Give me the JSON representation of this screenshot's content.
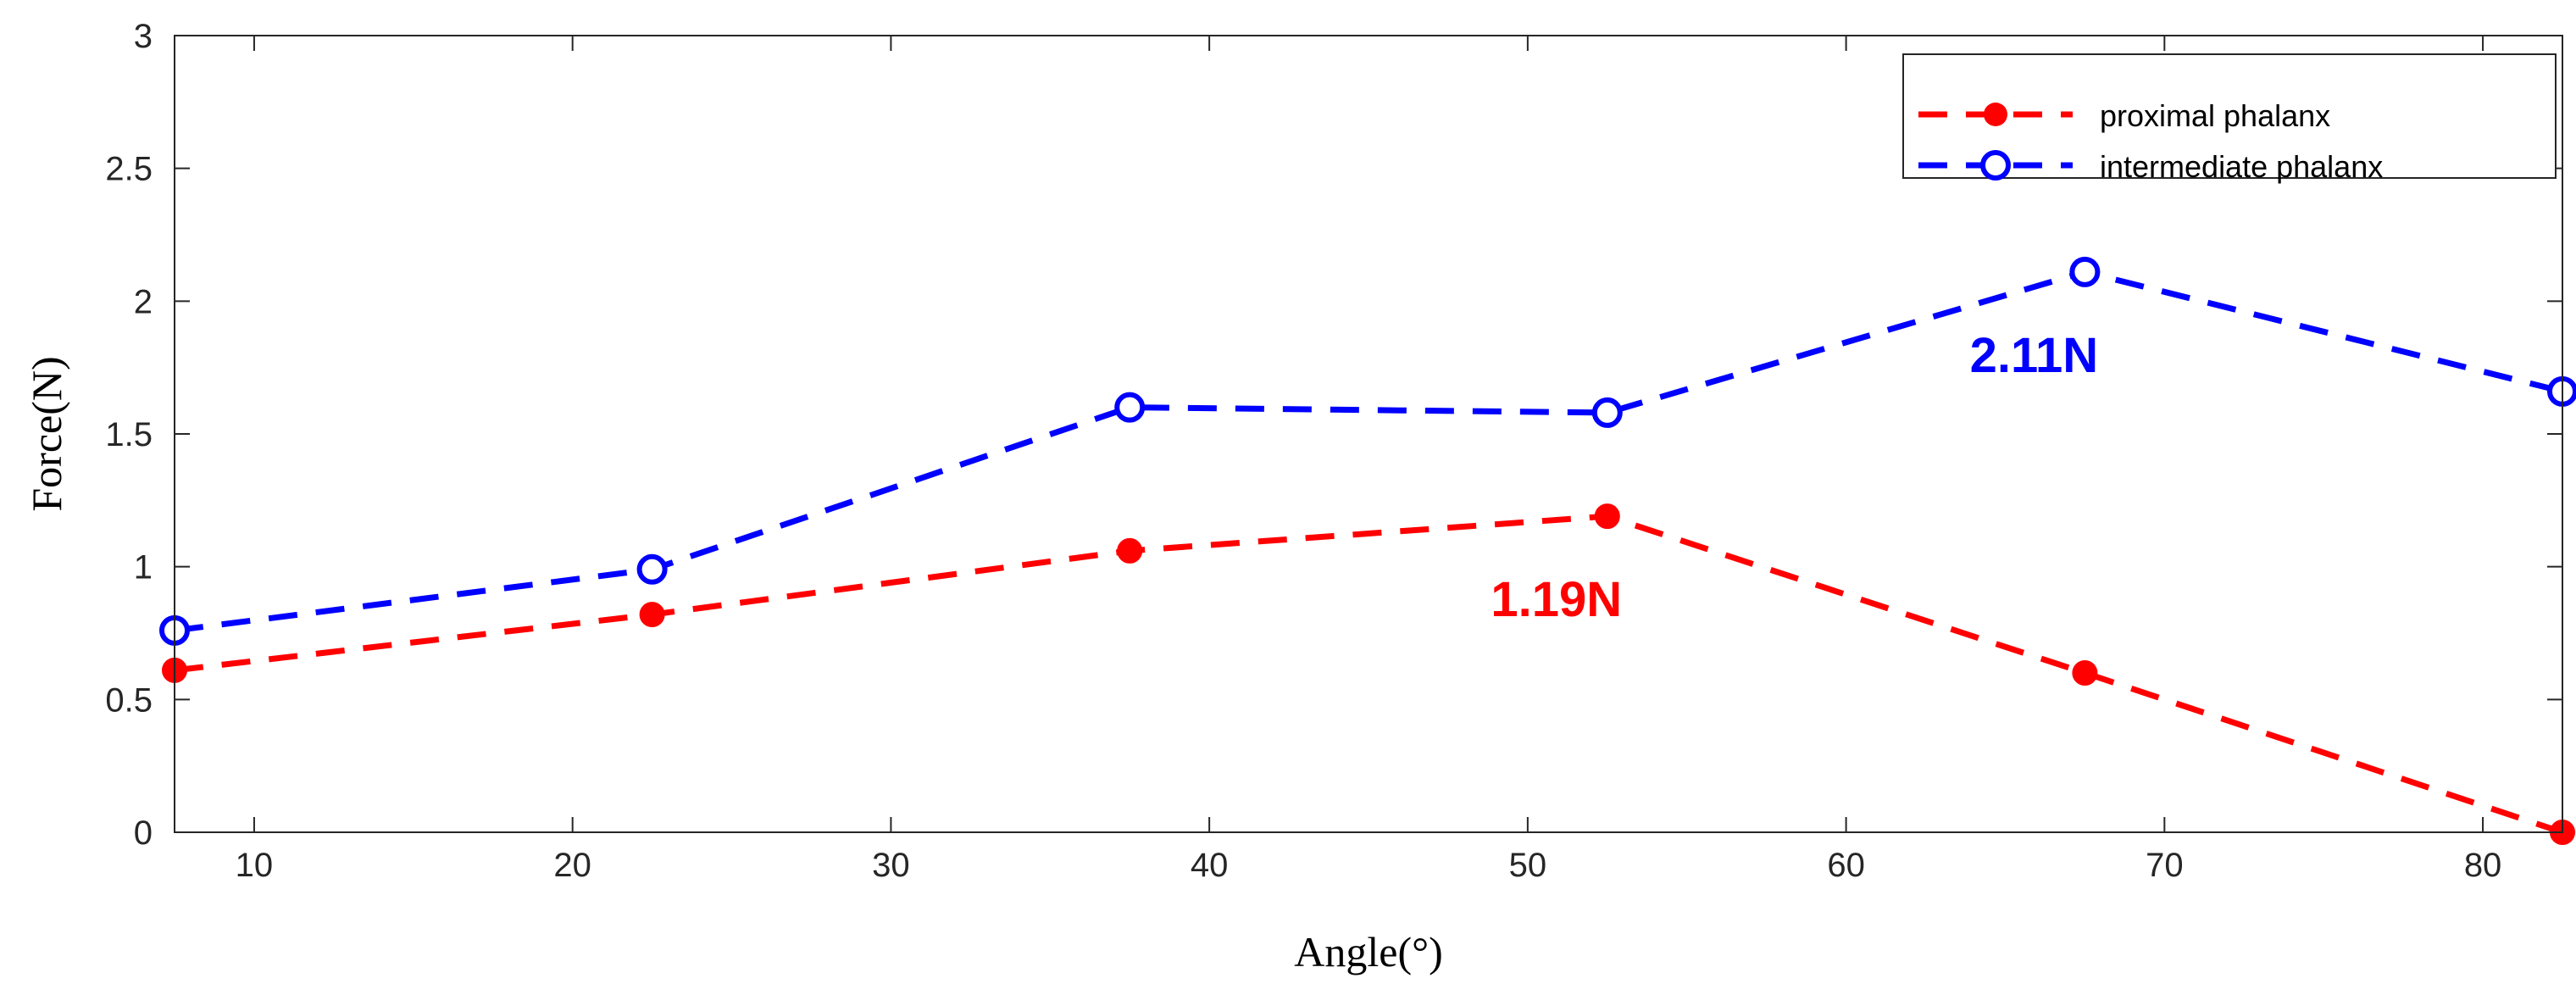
{
  "chart_data": {
    "type": "line",
    "title": "",
    "xlabel": "Angle(°)",
    "ylabel": "Force(N)",
    "xlim": [
      7.5,
      82.5
    ],
    "ylim": [
      0,
      3
    ],
    "xticks": [
      10,
      20,
      30,
      40,
      50,
      60,
      70,
      80
    ],
    "yticks": [
      0,
      0.5,
      1,
      1.5,
      2,
      2.5,
      3
    ],
    "xtick_labels": [
      "10",
      "20",
      "30",
      "40",
      "50",
      "60",
      "70",
      "80"
    ],
    "ytick_labels": [
      "0",
      "0.5",
      "1",
      "1.5",
      "2",
      "2.5",
      "3"
    ],
    "grid": false,
    "legend_position": "top-right",
    "series": [
      {
        "name": "proximal phalanx",
        "color": "#ff0000",
        "marker": "filled-circle",
        "line_style": "dashed",
        "x": [
          7.5,
          22.5,
          37.5,
          52.5,
          67.5,
          82.5
        ],
        "y": [
          0.61,
          0.82,
          1.06,
          1.19,
          0.6,
          0.0
        ]
      },
      {
        "name": "intermediate phalanx",
        "color": "#0000ff",
        "marker": "open-circle",
        "line_style": "dashed",
        "x": [
          7.5,
          22.5,
          37.5,
          52.5,
          67.5,
          82.5
        ],
        "y": [
          0.76,
          0.99,
          1.6,
          1.58,
          2.11,
          1.66
        ]
      }
    ],
    "annotations": [
      {
        "text": "1.19N",
        "x": 52.5,
        "y": 1.19,
        "color": "#ff0000",
        "series": 0
      },
      {
        "text": "2.11N",
        "x": 67.5,
        "y": 2.11,
        "color": "#0000ff",
        "series": 1
      }
    ]
  }
}
